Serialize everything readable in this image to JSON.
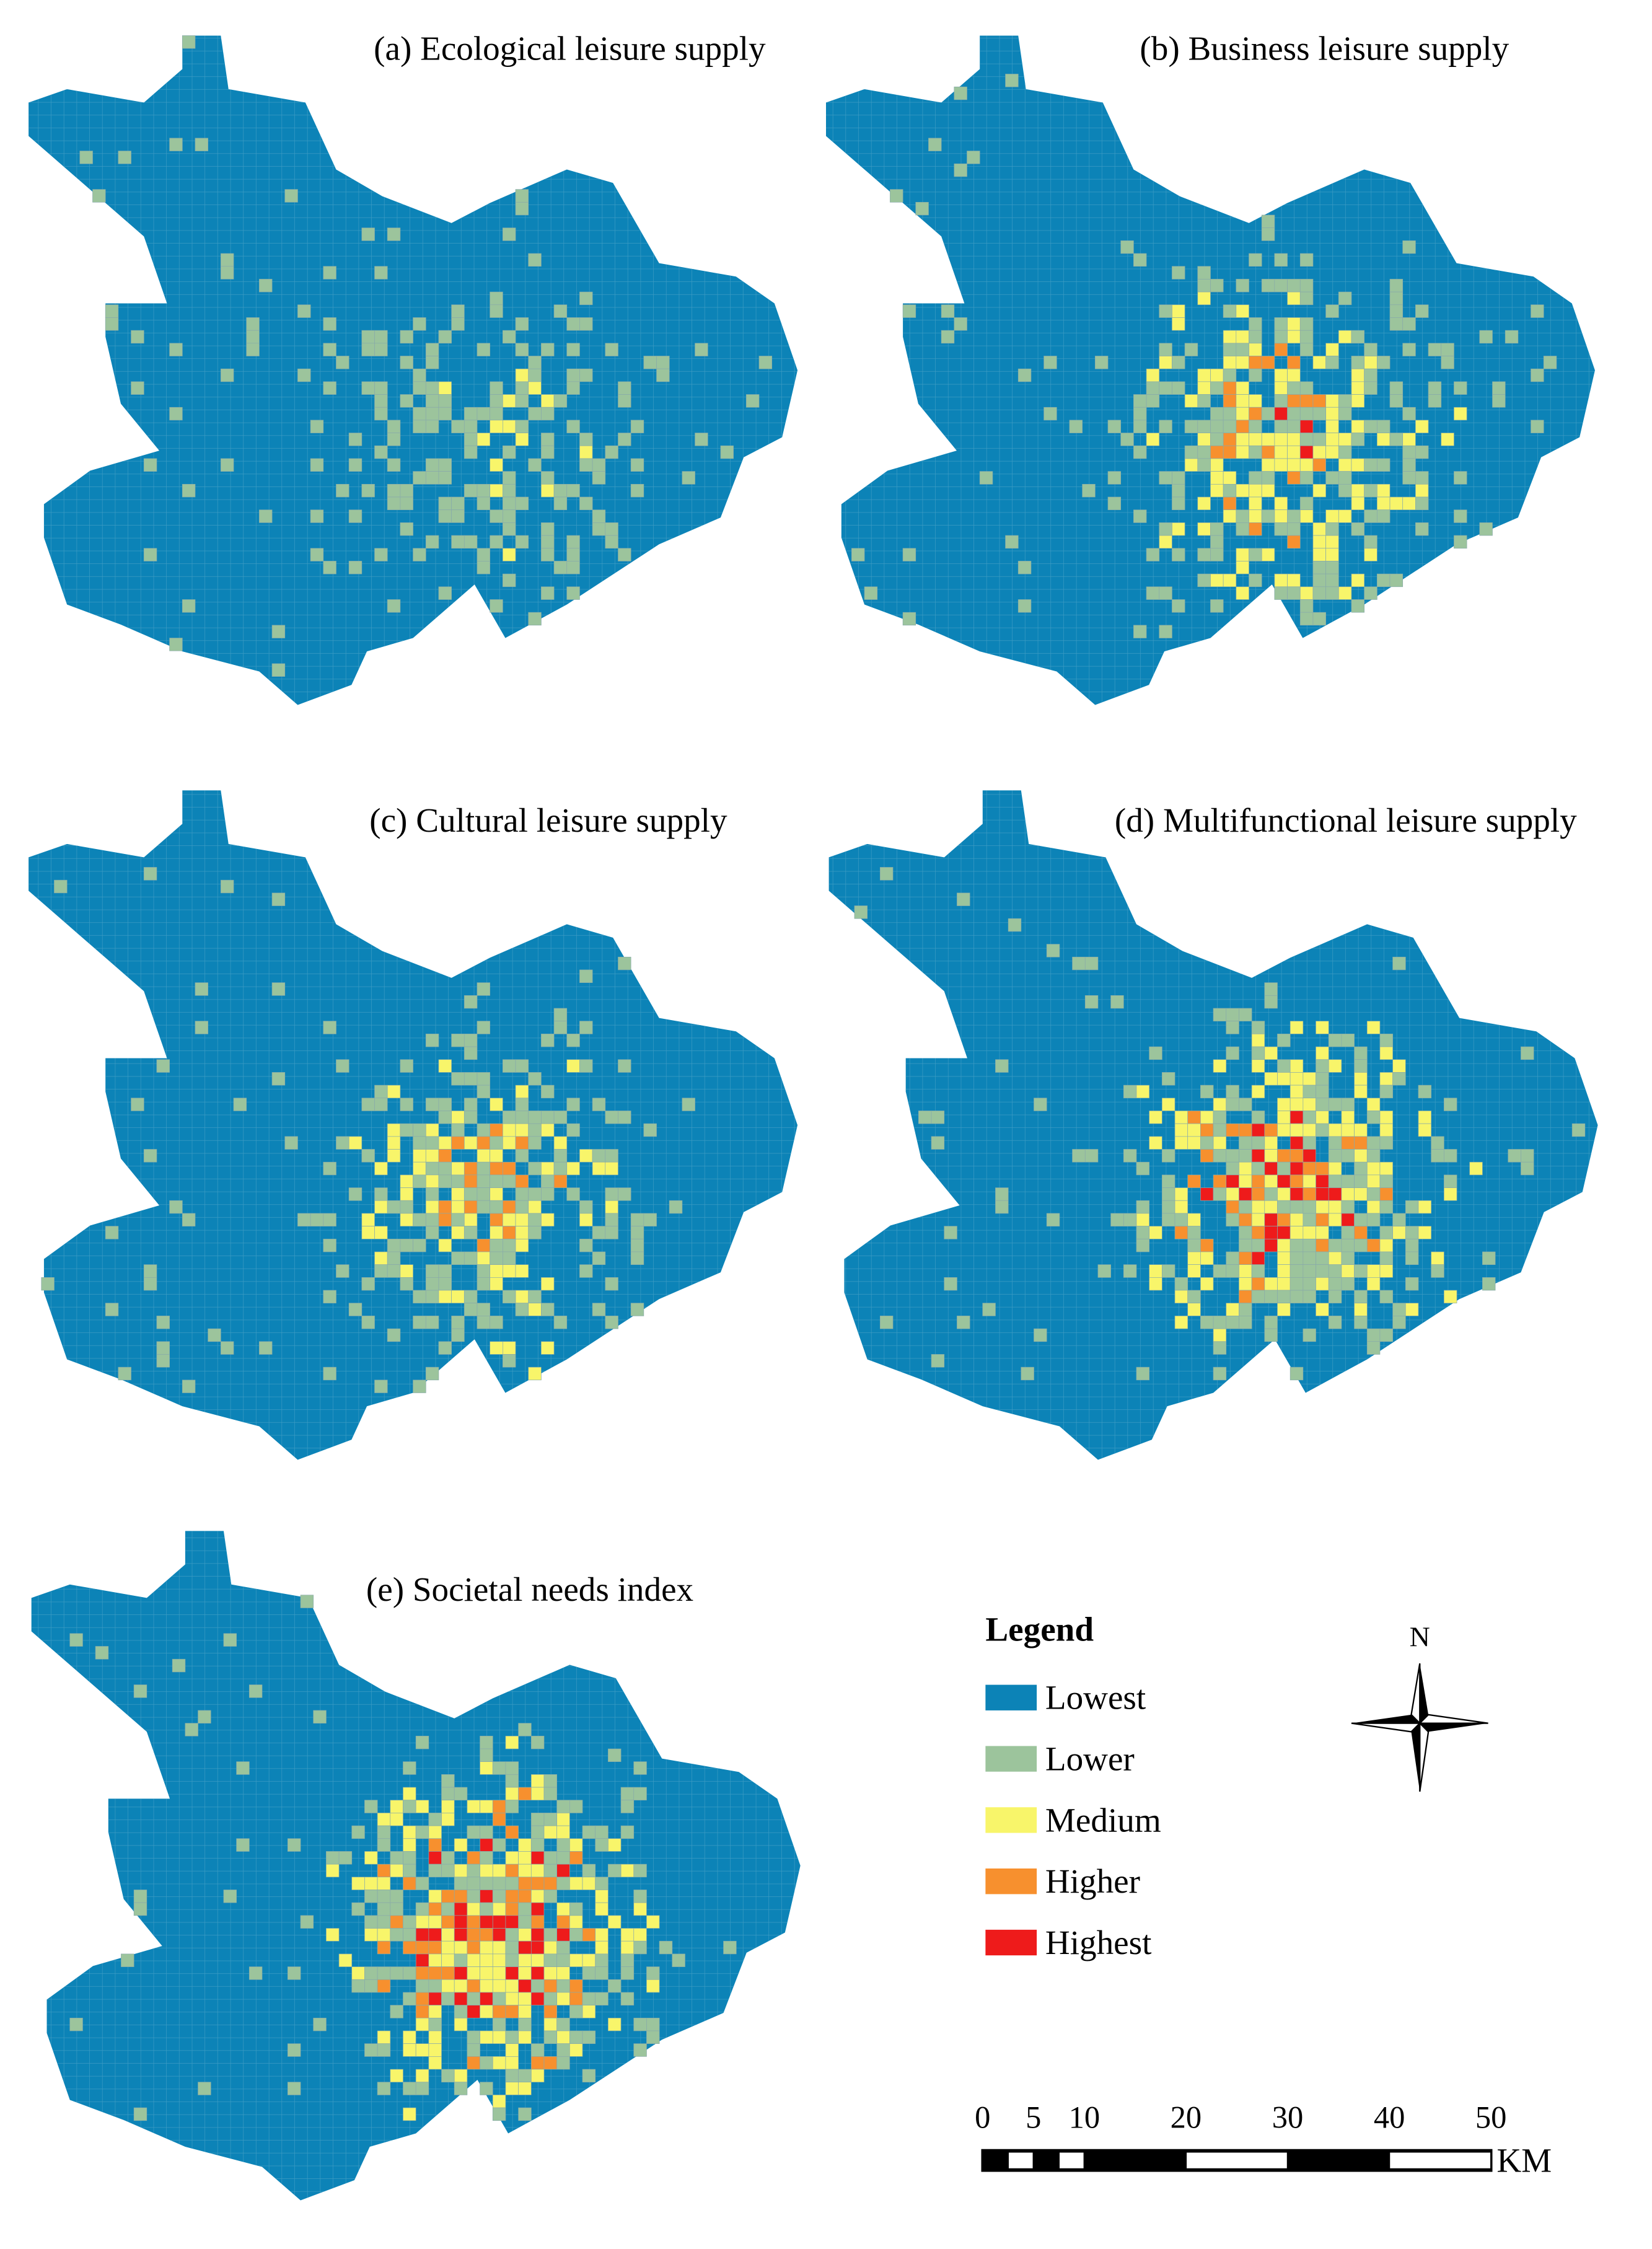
{
  "panels": [
    {
      "title": "(a) Ecological leisure supply"
    },
    {
      "title": "(b) Business leisure supply"
    },
    {
      "title": "(c) Cultural leisure supply"
    },
    {
      "title": "(d) Multifunctional leisure supply"
    },
    {
      "title": "(e) Societal needs index"
    }
  ],
  "legend": {
    "title": "Legend",
    "items": [
      {
        "label": "Lowest",
        "color": "#0c83b7"
      },
      {
        "label": "Lower",
        "color": "#9cc49c"
      },
      {
        "label": "Medium",
        "color": "#f8f56a"
      },
      {
        "label": "Higher",
        "color": "#f7902e"
      },
      {
        "label": "Highest",
        "color": "#ee1b1b"
      }
    ]
  },
  "north_arrow": {
    "label": "N"
  },
  "scale_bar": {
    "ticks": [
      0,
      5,
      10,
      20,
      30,
      40,
      50
    ],
    "unit": "KM"
  }
}
